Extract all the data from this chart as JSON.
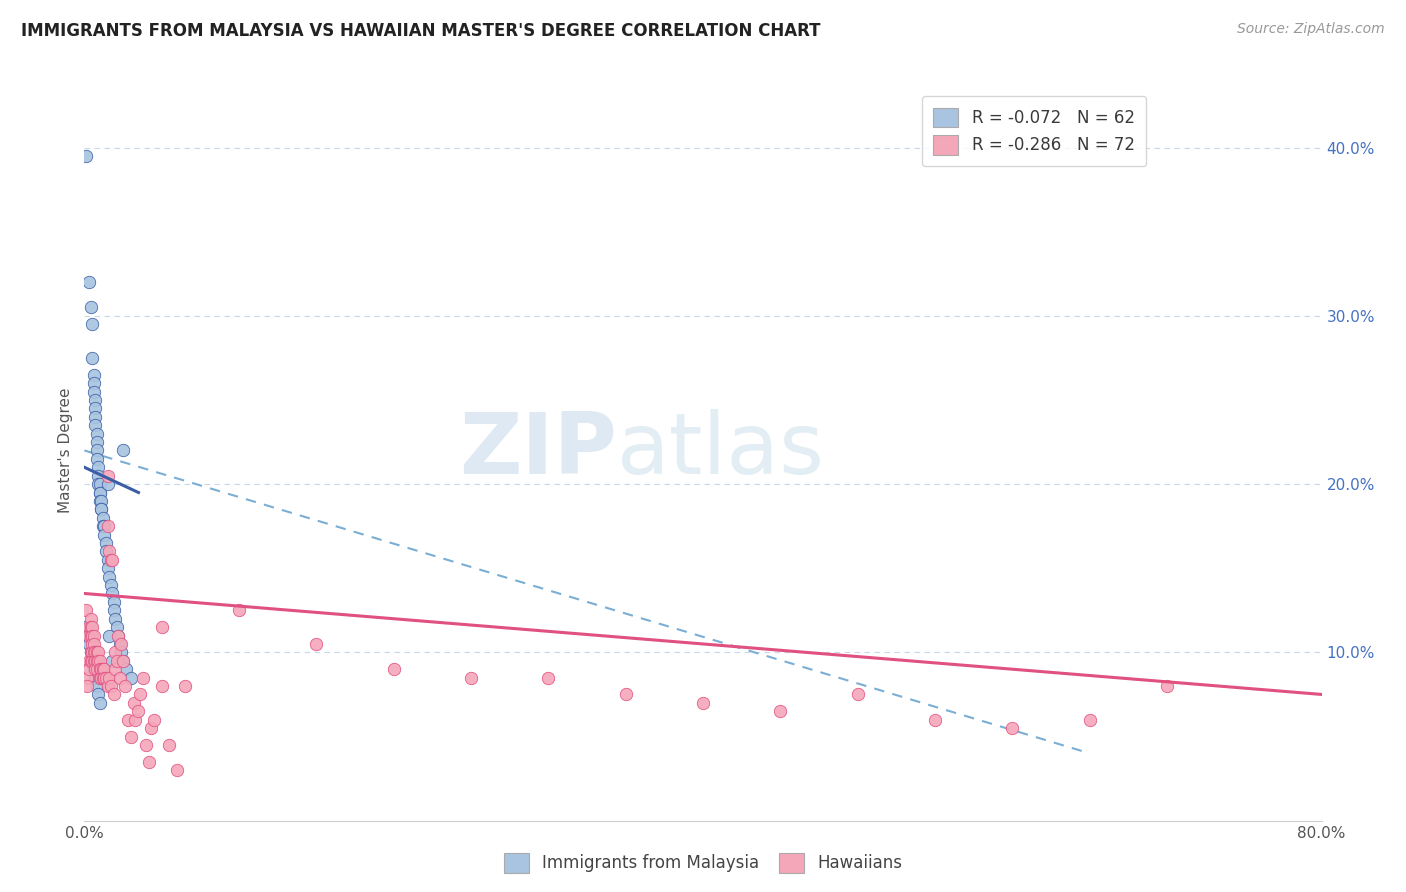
{
  "title": "IMMIGRANTS FROM MALAYSIA VS HAWAIIAN MASTER'S DEGREE CORRELATION CHART",
  "source": "Source: ZipAtlas.com",
  "ylabel": "Master's Degree",
  "right_yticks": [
    "40.0%",
    "30.0%",
    "20.0%",
    "10.0%"
  ],
  "right_ytick_vals": [
    40.0,
    30.0,
    20.0,
    10.0
  ],
  "watermark_zip": "ZIP",
  "watermark_atlas": "atlas",
  "blue_scatter": [
    [
      0.1,
      39.5
    ],
    [
      0.3,
      32.0
    ],
    [
      0.4,
      30.5
    ],
    [
      0.5,
      29.5
    ],
    [
      0.5,
      27.5
    ],
    [
      0.6,
      26.5
    ],
    [
      0.6,
      26.0
    ],
    [
      0.6,
      25.5
    ],
    [
      0.7,
      25.0
    ],
    [
      0.7,
      24.5
    ],
    [
      0.7,
      24.0
    ],
    [
      0.7,
      23.5
    ],
    [
      0.8,
      23.0
    ],
    [
      0.8,
      22.5
    ],
    [
      0.8,
      22.0
    ],
    [
      0.8,
      21.5
    ],
    [
      0.9,
      21.0
    ],
    [
      0.9,
      20.5
    ],
    [
      0.9,
      20.0
    ],
    [
      1.0,
      20.0
    ],
    [
      1.0,
      19.5
    ],
    [
      1.0,
      19.5
    ],
    [
      1.0,
      19.0
    ],
    [
      1.1,
      19.0
    ],
    [
      1.1,
      18.5
    ],
    [
      1.1,
      18.5
    ],
    [
      1.2,
      18.0
    ],
    [
      1.2,
      17.5
    ],
    [
      1.3,
      17.5
    ],
    [
      1.3,
      17.0
    ],
    [
      1.4,
      16.5
    ],
    [
      1.4,
      16.0
    ],
    [
      1.5,
      15.5
    ],
    [
      1.5,
      15.0
    ],
    [
      1.6,
      14.5
    ],
    [
      1.7,
      14.0
    ],
    [
      1.8,
      13.5
    ],
    [
      1.9,
      13.0
    ],
    [
      1.9,
      12.5
    ],
    [
      2.0,
      12.0
    ],
    [
      2.1,
      11.5
    ],
    [
      2.2,
      11.0
    ],
    [
      2.3,
      10.5
    ],
    [
      2.4,
      10.0
    ],
    [
      2.5,
      9.5
    ],
    [
      2.7,
      9.0
    ],
    [
      3.0,
      8.5
    ],
    [
      0.1,
      11.5
    ],
    [
      0.2,
      11.0
    ],
    [
      0.3,
      10.5
    ],
    [
      0.4,
      10.0
    ],
    [
      0.5,
      9.5
    ],
    [
      0.6,
      9.0
    ],
    [
      0.7,
      8.5
    ],
    [
      0.8,
      8.0
    ],
    [
      0.9,
      7.5
    ],
    [
      1.0,
      7.0
    ],
    [
      1.5,
      20.0
    ],
    [
      1.6,
      11.0
    ],
    [
      1.8,
      9.5
    ],
    [
      2.5,
      22.0
    ]
  ],
  "pink_scatter": [
    [
      0.1,
      12.5
    ],
    [
      0.2,
      8.5
    ],
    [
      0.2,
      8.0
    ],
    [
      0.3,
      11.5
    ],
    [
      0.3,
      11.0
    ],
    [
      0.3,
      9.5
    ],
    [
      0.3,
      9.0
    ],
    [
      0.4,
      12.0
    ],
    [
      0.4,
      11.5
    ],
    [
      0.4,
      11.0
    ],
    [
      0.4,
      10.0
    ],
    [
      0.4,
      9.5
    ],
    [
      0.5,
      11.5
    ],
    [
      0.5,
      11.0
    ],
    [
      0.5,
      10.5
    ],
    [
      0.5,
      10.0
    ],
    [
      0.5,
      9.5
    ],
    [
      0.6,
      11.0
    ],
    [
      0.6,
      10.5
    ],
    [
      0.6,
      10.0
    ],
    [
      0.6,
      9.5
    ],
    [
      0.7,
      10.0
    ],
    [
      0.7,
      9.5
    ],
    [
      0.7,
      9.0
    ],
    [
      0.8,
      10.0
    ],
    [
      0.8,
      9.5
    ],
    [
      0.8,
      9.0
    ],
    [
      0.9,
      10.0
    ],
    [
      0.9,
      9.5
    ],
    [
      1.0,
      9.5
    ],
    [
      1.0,
      9.0
    ],
    [
      1.0,
      8.5
    ],
    [
      1.1,
      9.0
    ],
    [
      1.1,
      8.5
    ],
    [
      1.2,
      9.0
    ],
    [
      1.2,
      8.5
    ],
    [
      1.3,
      9.0
    ],
    [
      1.3,
      8.5
    ],
    [
      1.4,
      8.5
    ],
    [
      1.5,
      17.5
    ],
    [
      1.5,
      20.5
    ],
    [
      1.5,
      8.0
    ],
    [
      1.6,
      16.0
    ],
    [
      1.6,
      8.5
    ],
    [
      1.7,
      15.5
    ],
    [
      1.7,
      8.0
    ],
    [
      1.8,
      15.5
    ],
    [
      1.9,
      7.5
    ],
    [
      2.0,
      10.0
    ],
    [
      2.0,
      9.0
    ],
    [
      2.1,
      9.5
    ],
    [
      2.2,
      11.0
    ],
    [
      2.3,
      8.5
    ],
    [
      2.4,
      10.5
    ],
    [
      2.5,
      9.5
    ],
    [
      2.6,
      8.0
    ],
    [
      2.8,
      6.0
    ],
    [
      3.0,
      5.0
    ],
    [
      3.2,
      7.0
    ],
    [
      3.3,
      6.0
    ],
    [
      3.5,
      6.5
    ],
    [
      3.6,
      7.5
    ],
    [
      3.8,
      8.5
    ],
    [
      4.0,
      4.5
    ],
    [
      4.2,
      3.5
    ],
    [
      4.3,
      5.5
    ],
    [
      4.5,
      6.0
    ],
    [
      5.0,
      11.5
    ],
    [
      5.0,
      8.0
    ],
    [
      5.5,
      4.5
    ],
    [
      6.0,
      3.0
    ],
    [
      6.5,
      8.0
    ],
    [
      10.0,
      12.5
    ],
    [
      15.0,
      10.5
    ],
    [
      20.0,
      9.0
    ],
    [
      25.0,
      8.5
    ],
    [
      30.0,
      8.5
    ],
    [
      35.0,
      7.5
    ],
    [
      40.0,
      7.0
    ],
    [
      45.0,
      6.5
    ],
    [
      50.0,
      7.5
    ],
    [
      55.0,
      6.0
    ],
    [
      60.0,
      5.5
    ],
    [
      65.0,
      6.0
    ],
    [
      70.0,
      8.0
    ]
  ],
  "blue_line_x": [
    0.0,
    3.5
  ],
  "blue_line_y": [
    21.0,
    19.5
  ],
  "pink_line_x": [
    0.0,
    80.0
  ],
  "pink_line_y": [
    13.5,
    7.5
  ],
  "dashed_line_x": [
    0.0,
    65.0
  ],
  "dashed_line_y": [
    22.0,
    4.0
  ],
  "blue_color": "#a8c4e0",
  "blue_line_color": "#3b5ea6",
  "pink_color": "#f4a7b9",
  "pink_line_color": "#e05080",
  "dashed_line_color": "#7baed4",
  "right_axis_color": "#4472c4",
  "grid_color": "#c8d8ea",
  "xlim": [
    0.0,
    80.0
  ],
  "ylim": [
    0.0,
    44.0
  ],
  "xticks": [
    0.0,
    20.0,
    40.0,
    60.0,
    80.0
  ],
  "xtick_labels": [
    "0.0%",
    "",
    "",
    "",
    "80.0%"
  ]
}
